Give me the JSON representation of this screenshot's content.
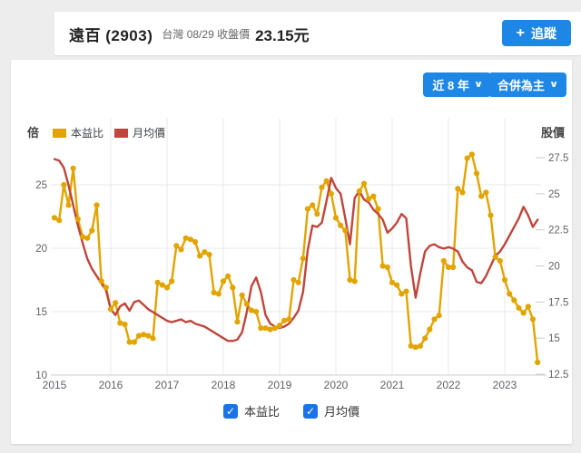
{
  "header": {
    "stock_name": "遠百 (2903)",
    "market": "台灣",
    "date": "08/29",
    "price_label": "收盤價",
    "price": "23.15元",
    "meta_text": "台灣 08/29 收盤價",
    "track_plus": "+",
    "track_label": "追蹤"
  },
  "toolbar": {
    "range_label": "近 8 年",
    "mode_label": "合併為主",
    "chevron": "∨"
  },
  "legend": [
    {
      "label": "本益比",
      "color": "#e2a400"
    },
    {
      "label": "月均價",
      "color": "#c0453c"
    }
  ],
  "checkboxes": [
    {
      "label": "本益比",
      "checked": true,
      "check_glyph": "✓"
    },
    {
      "label": "月均價",
      "checked": true,
      "check_glyph": "✓"
    }
  ],
  "colors": {
    "accent_blue": "#1e87e5",
    "checkbox_blue": "#1a73e8",
    "pe_yellow": "#e2a400",
    "price_red": "#c0453c",
    "grid": "#e9e9e9",
    "axis_text": "#5f6368"
  },
  "chart_data": {
    "type": "line",
    "x_unit": "month",
    "x_start": "2015-01",
    "x_end": "2023-08",
    "years": [
      2015,
      2016,
      2017,
      2018,
      2019,
      2020,
      2021,
      2022,
      2023
    ],
    "left_axis": {
      "label": "倍",
      "ticks": [
        25,
        20,
        15,
        10
      ],
      "range": [
        10,
        28.3
      ]
    },
    "right_axis": {
      "label": "股價",
      "ticks": [
        27.5,
        25,
        22.5,
        20,
        17.5,
        15,
        12.5
      ],
      "range": [
        12.5,
        28.3
      ]
    },
    "grid": true,
    "legend_position": "top-left",
    "series": [
      {
        "name": "本益比",
        "axis": "left",
        "color": "#e2a400",
        "marker": true,
        "values": [
          22.4,
          22.2,
          25.0,
          23.4,
          26.3,
          22.3,
          20.9,
          20.8,
          21.4,
          23.4,
          17.4,
          16.9,
          15.2,
          15.7,
          14.1,
          14.0,
          12.6,
          12.6,
          13.1,
          13.2,
          13.1,
          12.9,
          17.3,
          17.1,
          16.9,
          17.4,
          20.2,
          19.9,
          20.8,
          20.7,
          20.5,
          19.4,
          19.7,
          19.5,
          16.5,
          16.4,
          17.4,
          17.8,
          16.9,
          14.2,
          16.3,
          15.6,
          15.1,
          15.0,
          13.7,
          13.7,
          13.6,
          13.7,
          13.9,
          14.3,
          14.4,
          17.5,
          17.3,
          19.2,
          23.1,
          23.4,
          22.7,
          24.8,
          25.3,
          24.3,
          22.4,
          21.8,
          21.4,
          17.5,
          17.4,
          24.5,
          25.1,
          23.9,
          24.1,
          23.1,
          18.6,
          18.5,
          17.3,
          17.1,
          16.4,
          16.6,
          12.3,
          12.2,
          12.3,
          12.9,
          13.6,
          14.4,
          14.7,
          19.0,
          18.5,
          18.5,
          24.7,
          24.4,
          27.1,
          27.4,
          25.9,
          24.1,
          24.4,
          22.6,
          19.3,
          19.0,
          17.5,
          16.4,
          15.9,
          15.3,
          14.9,
          15.4,
          14.4,
          11.0
        ]
      },
      {
        "name": "月均價",
        "axis": "right",
        "color": "#c0453c",
        "marker": false,
        "values": [
          27.4,
          27.3,
          26.8,
          25.6,
          24.2,
          22.8,
          21.6,
          20.5,
          19.8,
          19.3,
          18.8,
          18.3,
          17.0,
          16.6,
          17.2,
          17.4,
          16.9,
          17.5,
          17.6,
          17.3,
          17.0,
          16.8,
          16.6,
          16.4,
          16.2,
          16.1,
          16.2,
          16.3,
          16.1,
          16.2,
          16.0,
          15.9,
          15.8,
          15.6,
          15.4,
          15.2,
          15.0,
          14.8,
          14.8,
          14.9,
          15.4,
          16.8,
          18.6,
          19.2,
          18.2,
          16.6,
          16.0,
          15.8,
          15.7,
          15.8,
          16.0,
          16.4,
          16.9,
          18.2,
          21.1,
          22.8,
          22.7,
          23.0,
          24.5,
          26.1,
          25.4,
          25.0,
          23.3,
          21.5,
          24.7,
          25.2,
          24.6,
          24.4,
          23.9,
          23.6,
          23.2,
          22.3,
          22.6,
          23.0,
          23.6,
          23.3,
          20.0,
          17.8,
          19.5,
          21.0,
          21.4,
          21.5,
          21.3,
          21.2,
          21.3,
          21.2,
          21.0,
          20.3,
          19.9,
          19.7,
          18.9,
          18.8,
          19.3,
          20.0,
          20.7,
          21.0,
          21.5,
          22.1,
          22.7,
          23.3,
          24.1,
          23.5,
          22.7,
          23.2
        ]
      }
    ]
  }
}
